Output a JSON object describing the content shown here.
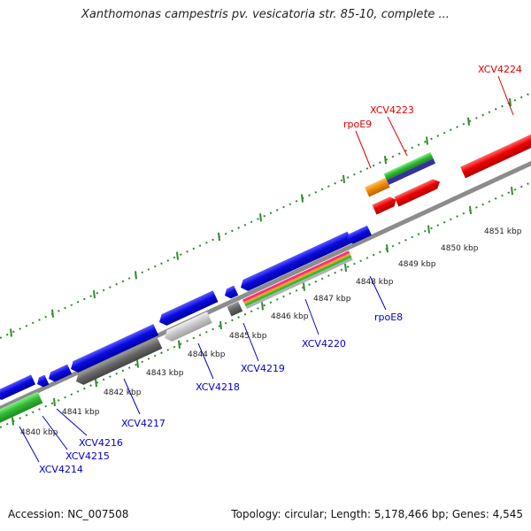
{
  "title": "Xanthomonas campestris pv. vesicatoria str. 85-10, complete ...",
  "footer": {
    "accession": "Accession: NC_007508",
    "summary": "Topology: circular; Length: 5,178,466 bp; Genes: 4,545"
  },
  "colors": {
    "backbone": "#8c8c8c",
    "tick": "#2e8b2e",
    "top_label": "#e00000",
    "bottom_label": "#0000cc",
    "kbp_label": "#222222"
  },
  "kbp_labels": [
    "4840 kbp",
    "4841 kbp",
    "4842 kbp",
    "4843 kbp",
    "4844 kbp",
    "4845 kbp",
    "4846 kbp",
    "4847 kbp",
    "4848 kbp",
    "4849 kbp",
    "4850 kbp",
    "4851 kbp"
  ],
  "top_gene_labels": [
    "XCV4224",
    "XCV4223",
    "rpoE9"
  ],
  "bottom_gene_labels": [
    "rpoE8",
    "XCV4220",
    "XCV4219",
    "XCV4218",
    "XCV4217",
    "XCV4216",
    "XCV4215",
    "XCV4214"
  ],
  "feature_colors": {
    "forward_red": "#ee0000",
    "orange": "#f08c00",
    "green": "#33bb33",
    "navy": "#333399",
    "blue": "#0a0ae0",
    "gray": "#666666",
    "light_gray": "#c8c8c8",
    "dark_gray": "#555555"
  }
}
